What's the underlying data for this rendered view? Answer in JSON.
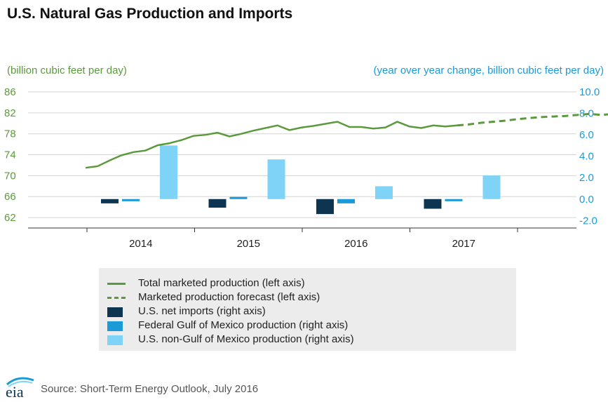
{
  "header": {
    "title": "U.S. Natural Gas Production and Imports",
    "left_unit": "(billion cubic feet per day)",
    "right_unit": "(year over year change, billion cubic feet per day)"
  },
  "legend": {
    "items": [
      {
        "label": "Total marketed production (left axis)",
        "kind": "line",
        "color": "#5b9a3c"
      },
      {
        "label": "Marketed production forecast (left axis)",
        "kind": "dash",
        "color": "#5b9a3c"
      },
      {
        "label": "U.S. net imports (right axis)",
        "kind": "box",
        "color": "#0d3551"
      },
      {
        "label": "Federal Gulf of Mexico production (right axis)",
        "kind": "box",
        "color": "#1a9bd7"
      },
      {
        "label": "U.S. non-Gulf of Mexico production (right axis)",
        "kind": "box",
        "color": "#7fd3f7"
      }
    ]
  },
  "footer": {
    "source": "Source: Short-Term Energy Outlook, July 2016",
    "logo_text": "eia"
  },
  "chart_data": {
    "type": "bar+line",
    "title": "U.S. Natural Gas Production and Imports",
    "categories": [
      "2014",
      "2015",
      "2016",
      "2017"
    ],
    "left_axis": {
      "label": "(billion cubic feet per day)",
      "range": [
        60,
        86
      ],
      "ticks": [
        62,
        66,
        70,
        74,
        78,
        82,
        86
      ],
      "color": "#5b9a3c"
    },
    "right_axis": {
      "label": "(year over year change, billion cubic feet per day)",
      "range": [
        -2.7,
        10.0
      ],
      "ticks": [
        -2.0,
        0.0,
        2.0,
        4.0,
        6.0,
        8.0,
        10.0
      ],
      "tick_labels": [
        "-2.0",
        "0.0",
        "2.0",
        "4.0",
        "6.0",
        "8.0",
        "10.0"
      ],
      "color": "#1a9bd7"
    },
    "bar_series": [
      {
        "name": "U.S. net imports (right axis)",
        "color": "#0d3551",
        "values": [
          -0.4,
          -0.8,
          -1.4,
          -0.9
        ]
      },
      {
        "name": "Federal Gulf of Mexico production (right axis)",
        "color": "#1a9bd7",
        "values": [
          -0.2,
          0.2,
          -0.4,
          -0.2
        ]
      },
      {
        "name": "U.S. non-Gulf of Mexico production (right axis)",
        "color": "#7fd3f7",
        "values": [
          5.0,
          3.7,
          1.2,
          2.2
        ]
      }
    ],
    "line_series": [
      {
        "name": "Total marketed production (left axis)",
        "color": "#5b9a3c",
        "style": "solid",
        "values": [
          71.5,
          71.8,
          72.9,
          73.9,
          74.5,
          74.8,
          75.8,
          76.2,
          76.8,
          77.6,
          77.8,
          78.2,
          77.5,
          78.0,
          78.6,
          79.1,
          79.6,
          78.7,
          79.2,
          79.5,
          79.9,
          80.3,
          79.3,
          79.3,
          79.0,
          79.2,
          80.3,
          79.4,
          79.1,
          79.6,
          79.4,
          79.6
        ]
      },
      {
        "name": "Marketed production forecast (left axis)",
        "color": "#5b9a3c",
        "style": "dashed",
        "values": [
          79.6,
          79.8,
          80.1,
          80.3,
          80.5,
          80.8,
          81.0,
          81.2,
          81.3,
          81.4,
          81.6,
          81.8,
          81.6,
          81.8,
          81.9,
          82.1,
          82.5,
          82.7
        ]
      }
    ]
  }
}
